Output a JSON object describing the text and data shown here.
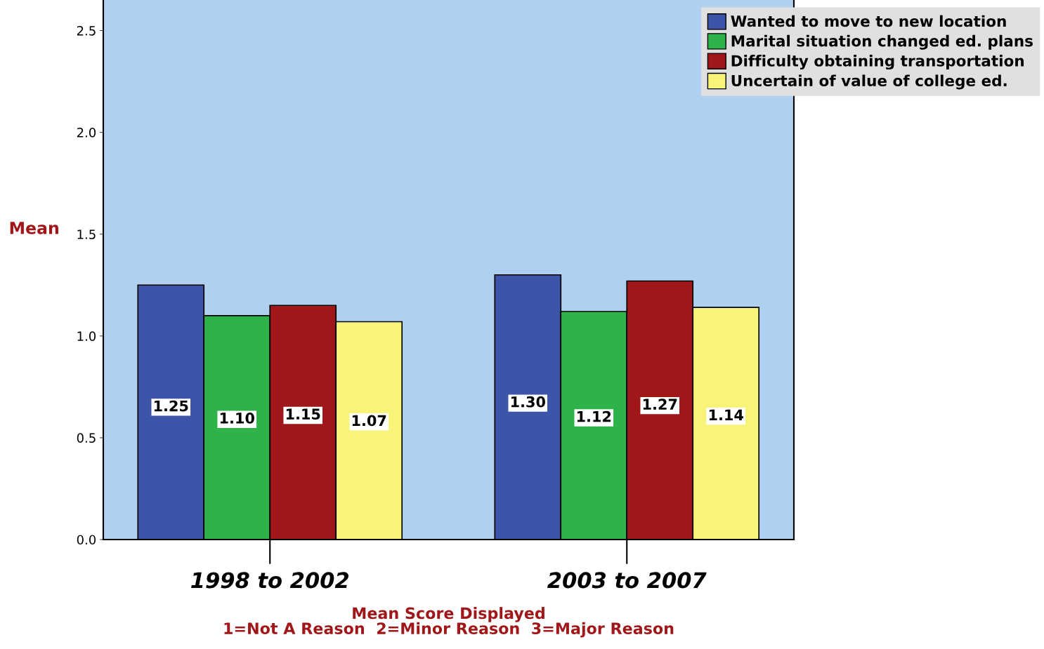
{
  "chart_data": {
    "type": "bar",
    "categories": [
      "1998 to 2002",
      "2003 to 2007"
    ],
    "series": [
      {
        "name": "Wanted to move to new location",
        "color": "#3d55a8",
        "values": [
          1.25,
          1.3
        ],
        "value_labels": [
          "1.25",
          "1.30"
        ]
      },
      {
        "name": "Marital situation changed ed. plans",
        "color": "#2db34a",
        "values": [
          1.1,
          1.12
        ],
        "value_labels": [
          "1.10",
          "1.12"
        ]
      },
      {
        "name": "Difficulty obtaining transportation",
        "color": "#a01719",
        "values": [
          1.15,
          1.27
        ],
        "value_labels": [
          "1.15",
          "1.27"
        ]
      },
      {
        "name": "Uncertain of value of college ed.",
        "color": "#f8f47a",
        "values": [
          1.07,
          1.14
        ],
        "value_labels": [
          "1.07",
          "1.14"
        ]
      }
    ],
    "ylabel": "Mean",
    "xlabel": "Mean Score Displayed\n1=Not A Reason  2=Minor Reason  3=Major Reason",
    "ylim": [
      0,
      2.65
    ],
    "yticks": [
      {
        "value": 0,
        "label": "0.0"
      },
      {
        "value": 0.5,
        "label": "0.5"
      },
      {
        "value": 1.0,
        "label": "1.0"
      },
      {
        "value": 1.5,
        "label": "1.5"
      },
      {
        "value": 2.0,
        "label": "2.0"
      },
      {
        "value": 2.5,
        "label": "2.5"
      }
    ],
    "grid": false,
    "legend": "top right"
  }
}
